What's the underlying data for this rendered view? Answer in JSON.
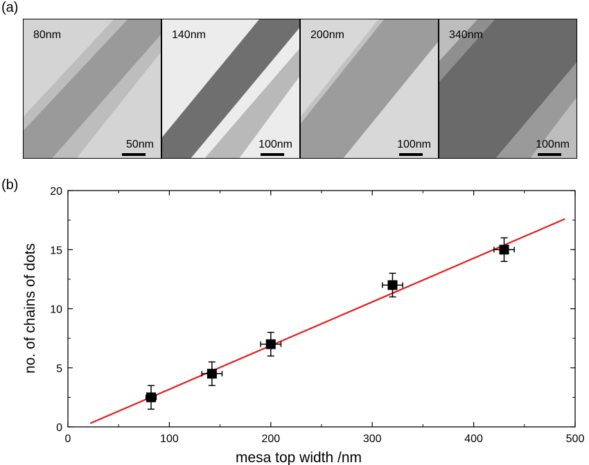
{
  "panels": {
    "a": "(a)",
    "b": "(b)"
  },
  "micrographs": [
    {
      "width_label": "80nm",
      "scale_label": "50nm"
    },
    {
      "width_label": "140nm",
      "scale_label": "100nm"
    },
    {
      "width_label": "200nm",
      "scale_label": "100nm"
    },
    {
      "width_label": "340nm",
      "scale_label": "100nm"
    }
  ],
  "chart_data": {
    "type": "scatter",
    "title": "",
    "xlabel": "mesa top width /nm",
    "ylabel": "no. of chains of dots",
    "xlim": [
      0,
      500
    ],
    "ylim": [
      0,
      20
    ],
    "xticks": [
      0,
      100,
      200,
      300,
      400,
      500
    ],
    "yticks": [
      0,
      5,
      10,
      15,
      20
    ],
    "grid": false,
    "series": [
      {
        "marker": "square",
        "color": "#000000",
        "points": [
          {
            "x": 82,
            "y": 2.5,
            "xerr": 5,
            "yerr": 1
          },
          {
            "x": 142,
            "y": 4.5,
            "xerr": 10,
            "yerr": 1
          },
          {
            "x": 200,
            "y": 7,
            "xerr": 10,
            "yerr": 1
          },
          {
            "x": 320,
            "y": 12,
            "xerr": 10,
            "yerr": 1
          },
          {
            "x": 430,
            "y": 15,
            "xerr": 10,
            "yerr": 1
          }
        ]
      }
    ],
    "fit_line": {
      "color": "#e8191a",
      "x": [
        22,
        490
      ],
      "y": [
        0.3,
        17.6
      ]
    }
  }
}
